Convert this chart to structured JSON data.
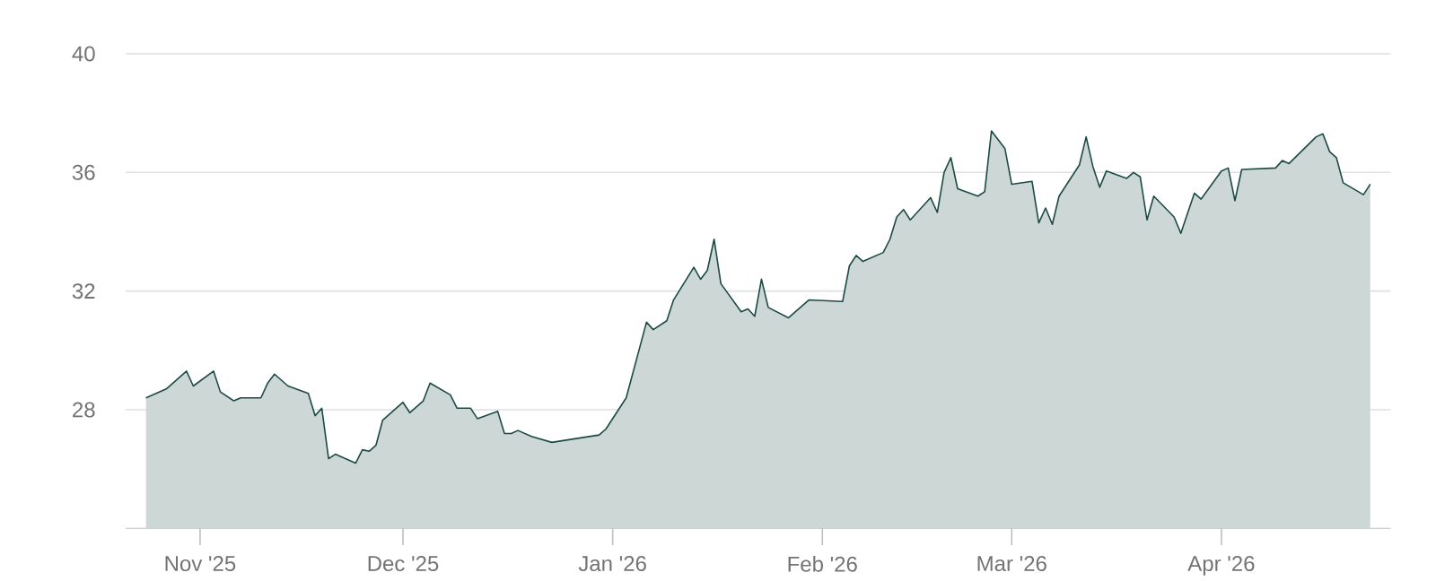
{
  "chart_data": {
    "type": "area",
    "x": [
      "2025-10-24",
      "2025-10-27",
      "2025-10-30",
      "2025-10-31",
      "2025-11-03",
      "2025-11-04",
      "2025-11-06",
      "2025-11-07",
      "2025-11-10",
      "2025-11-11",
      "2025-11-12",
      "2025-11-14",
      "2025-11-17",
      "2025-11-18",
      "2025-11-19",
      "2025-11-20",
      "2025-11-21",
      "2025-11-24",
      "2025-11-25",
      "2025-11-26",
      "2025-11-27",
      "2025-11-28",
      "2025-12-01",
      "2025-12-02",
      "2025-12-04",
      "2025-12-05",
      "2025-12-08",
      "2025-12-09",
      "2025-12-11",
      "2025-12-12",
      "2025-12-15",
      "2025-12-16",
      "2025-12-17",
      "2025-12-18",
      "2025-12-20",
      "2025-12-23",
      "2025-12-30",
      "2025-12-31",
      "2026-01-03",
      "2026-01-06",
      "2026-01-07",
      "2026-01-09",
      "2026-01-10",
      "2026-01-13",
      "2026-01-14",
      "2026-01-15",
      "2026-01-16",
      "2026-01-17",
      "2026-01-20",
      "2026-01-21",
      "2026-01-22",
      "2026-01-23",
      "2026-01-24",
      "2026-01-27",
      "2026-01-30",
      "2026-02-04",
      "2026-02-05",
      "2026-02-06",
      "2026-02-07",
      "2026-02-10",
      "2026-02-11",
      "2026-02-12",
      "2026-02-13",
      "2026-02-14",
      "2026-02-17",
      "2026-02-18",
      "2026-02-19",
      "2026-02-20",
      "2026-02-21",
      "2026-02-24",
      "2026-02-25",
      "2026-02-26",
      "2026-02-28",
      "2026-03-01",
      "2026-03-04",
      "2026-03-05",
      "2026-03-06",
      "2026-03-07",
      "2026-03-08",
      "2026-03-11",
      "2026-03-12",
      "2026-03-13",
      "2026-03-14",
      "2026-03-15",
      "2026-03-18",
      "2026-03-19",
      "2026-03-20",
      "2026-03-21",
      "2026-03-22",
      "2026-03-25",
      "2026-03-26",
      "2026-03-28",
      "2026-03-29",
      "2026-04-01",
      "2026-04-02",
      "2026-04-03",
      "2026-04-04",
      "2026-04-09",
      "2026-04-10",
      "2026-04-11",
      "2026-04-15",
      "2026-04-16",
      "2026-04-17",
      "2026-04-18",
      "2026-04-19",
      "2026-04-22",
      "2026-04-23"
    ],
    "series": [
      {
        "color": "#1b4a45",
        "values": [
          28.4,
          28.7,
          29.3,
          28.8,
          29.3,
          28.6,
          28.3,
          28.4,
          28.4,
          28.9,
          29.2,
          28.8,
          28.55,
          27.8,
          28.05,
          26.35,
          26.5,
          26.2,
          26.65,
          26.6,
          26.8,
          27.65,
          28.25,
          27.9,
          28.3,
          28.9,
          28.5,
          28.05,
          28.05,
          27.7,
          27.95,
          27.2,
          27.2,
          27.3,
          27.1,
          26.9,
          27.15,
          27.35,
          28.4,
          30.95,
          30.7,
          31.0,
          31.7,
          32.8,
          32.4,
          32.7,
          33.75,
          32.25,
          31.3,
          31.4,
          31.15,
          32.4,
          31.45,
          31.1,
          31.7,
          31.65,
          32.85,
          33.2,
          33.0,
          33.3,
          33.75,
          34.5,
          34.75,
          34.4,
          35.15,
          34.65,
          36.0,
          36.5,
          35.45,
          35.2,
          35.35,
          37.4,
          36.8,
          35.6,
          35.7,
          34.3,
          34.8,
          34.25,
          35.2,
          36.25,
          37.2,
          36.2,
          35.5,
          36.05,
          35.8,
          36.0,
          35.85,
          34.4,
          35.2,
          34.5,
          33.95,
          35.3,
          35.1,
          36.05,
          36.15,
          35.05,
          36.1,
          36.15,
          36.4,
          36.3,
          37.2,
          37.3,
          36.7,
          36.5,
          35.65,
          35.25,
          35.6
        ]
      }
    ],
    "xlim": [
      "2025-10-21",
      "2026-04-26"
    ],
    "xticks": [
      {
        "value": "2025-11-01",
        "label": "Nov '25"
      },
      {
        "value": "2025-12-01",
        "label": "Dec '25"
      },
      {
        "value": "2026-01-01",
        "label": "Jan '26"
      },
      {
        "value": "2026-02-01",
        "label": "Feb '26"
      },
      {
        "value": "2026-03-01",
        "label": "Mar '26"
      },
      {
        "value": "2026-04-01",
        "label": "Apr '26"
      }
    ],
    "ylim": [
      24,
      40
    ],
    "yticks": [
      28,
      32,
      36,
      40
    ],
    "grid": "y"
  }
}
